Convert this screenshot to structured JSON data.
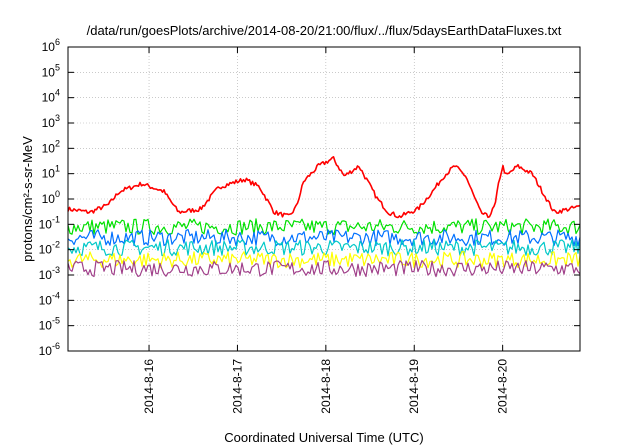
{
  "chart_data": {
    "type": "line",
    "title": "/data/run/goesPlots/archive/2014-08-20/21:00/flux/../flux/5daysEarthDataFluxes.txt",
    "xlabel": "Coordinated Universal Time (UTC)",
    "ylabel": "protons/cm²-s-sr-MeV",
    "yscale": "log",
    "ylim": [
      1e-06,
      1000000.0
    ],
    "ytick_labels": [
      {
        "base": "10",
        "exp": "-6"
      },
      {
        "base": "10",
        "exp": "-5"
      },
      {
        "base": "10",
        "exp": "-4"
      },
      {
        "base": "10",
        "exp": "-3"
      },
      {
        "base": "10",
        "exp": "-2"
      },
      {
        "base": "10",
        "exp": "-1"
      },
      {
        "base": "10",
        "exp": "0"
      },
      {
        "base": "10",
        "exp": "1"
      },
      {
        "base": "10",
        "exp": "2"
      },
      {
        "base": "10",
        "exp": "3"
      },
      {
        "base": "10",
        "exp": "4"
      },
      {
        "base": "10",
        "exp": "5"
      },
      {
        "base": "10",
        "exp": "6"
      }
    ],
    "xlim": [
      "2014-08-15 02:00",
      "2014-08-20 21:00"
    ],
    "xtick_labels": [
      "2014-8-16",
      "2014-8-17",
      "2014-8-18",
      "2014-8-19",
      "2014-8-20"
    ],
    "grid": true,
    "series": [
      {
        "color": "#ff0000",
        "x": [
          "2014-08-15 02:00",
          "2014-08-15 08:00",
          "2014-08-15 13:00",
          "2014-08-15 16:00",
          "2014-08-15 22:00",
          "2014-08-16 04:00",
          "2014-08-16 08:00",
          "2014-08-16 14:00",
          "2014-08-16 19:00",
          "2014-08-17 02:00",
          "2014-08-17 06:00",
          "2014-08-17 10:00",
          "2014-08-17 14:00",
          "2014-08-17 16:00",
          "2014-08-17 18:00",
          "2014-08-17 22:00",
          "2014-08-18 02:00",
          "2014-08-18 05:00",
          "2014-08-18 09:00",
          "2014-08-18 14:00",
          "2014-08-18 17:00",
          "2014-08-18 20:00",
          "2014-08-19 01:00",
          "2014-08-19 05:00",
          "2014-08-19 08:00",
          "2014-08-19 11:00",
          "2014-08-19 14:00",
          "2014-08-19 16:00",
          "2014-08-19 18:00",
          "2014-08-19 20:00",
          "2014-08-19 21:00",
          "2014-08-19 22:00",
          "2014-08-19 23:00",
          "2014-08-20 00:00",
          "2014-08-20 01:00",
          "2014-08-20 04:00",
          "2014-08-20 08:00",
          "2014-08-20 14:00",
          "2014-08-20 21:00"
        ],
        "y": [
          0.4,
          0.3,
          0.6,
          2.0,
          4.0,
          2.0,
          0.3,
          0.4,
          3.0,
          6.0,
          3.0,
          0.3,
          0.2,
          0.5,
          5.0,
          20.0,
          40.0,
          8.0,
          20.0,
          1.0,
          0.3,
          0.2,
          0.4,
          2.0,
          8.0,
          20.0,
          8.0,
          1.5,
          0.3,
          0.2,
          0.3,
          0.6,
          5.0,
          20.0,
          8.0,
          20.0,
          10.0,
          0.3,
          0.5
        ]
      },
      {
        "color": "#00e000",
        "x": [
          "2014-08-15 02:00",
          "2014-08-16 00:00",
          "2014-08-17 00:00",
          "2014-08-18 00:00",
          "2014-08-19 00:00",
          "2014-08-20 00:00",
          "2014-08-20 21:00"
        ],
        "y": [
          0.08,
          0.08,
          0.08,
          0.08,
          0.08,
          0.08,
          0.08
        ]
      },
      {
        "color": "#0070ff",
        "x": [
          "2014-08-15 02:00",
          "2014-08-16 00:00",
          "2014-08-17 00:00",
          "2014-08-18 00:00",
          "2014-08-19 00:00",
          "2014-08-20 00:00",
          "2014-08-20 21:00"
        ],
        "y": [
          0.03,
          0.03,
          0.03,
          0.03,
          0.03,
          0.03,
          0.03
        ]
      },
      {
        "color": "#00c8c8",
        "x": [
          "2014-08-15 02:00",
          "2014-08-16 00:00",
          "2014-08-17 00:00",
          "2014-08-18 00:00",
          "2014-08-19 00:00",
          "2014-08-20 00:00",
          "2014-08-20 21:00"
        ],
        "y": [
          0.012,
          0.012,
          0.012,
          0.012,
          0.012,
          0.012,
          0.012
        ]
      },
      {
        "color": "#ffff00",
        "x": [
          "2014-08-15 02:00",
          "2014-08-16 00:00",
          "2014-08-17 00:00",
          "2014-08-18 00:00",
          "2014-08-19 00:00",
          "2014-08-20 00:00",
          "2014-08-20 21:00"
        ],
        "y": [
          0.004,
          0.004,
          0.004,
          0.004,
          0.004,
          0.004,
          0.004
        ]
      },
      {
        "color": "#a0408a",
        "x": [
          "2014-08-15 02:00",
          "2014-08-16 00:00",
          "2014-08-17 00:00",
          "2014-08-18 00:00",
          "2014-08-19 00:00",
          "2014-08-20 00:00",
          "2014-08-20 21:00"
        ],
        "y": [
          0.0018,
          0.0018,
          0.0018,
          0.0018,
          0.0018,
          0.0018,
          0.0018
        ]
      }
    ]
  }
}
